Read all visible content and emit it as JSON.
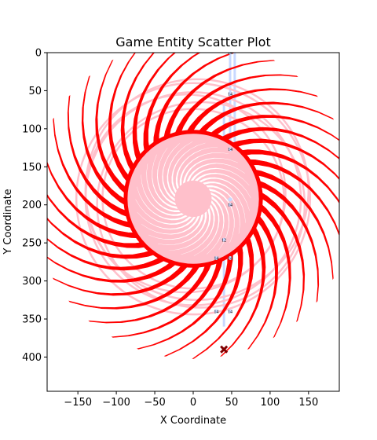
{
  "chart_data": {
    "type": "scatter",
    "title": "Game Entity Scatter Plot",
    "xlabel": "X Coordinate",
    "ylabel": "Y Coordinate",
    "xlim": [
      -190,
      190
    ],
    "ylim": [
      445,
      0
    ],
    "y_inverted": true,
    "grid": false,
    "xticks": [
      -150,
      -100,
      -50,
      0,
      50,
      100,
      150
    ],
    "yticks": [
      0,
      50,
      100,
      150,
      200,
      250,
      300,
      350,
      400
    ],
    "colors": {
      "main": "#ff0000",
      "pink": "#ffc0cb",
      "light_blue": "#c8d8ff",
      "marker": "#800000",
      "axes": "#000000"
    },
    "spiral": {
      "center": [
        0,
        192
      ],
      "blades": 36,
      "inner_radius": 50,
      "outer_radius": 210,
      "sweep_degrees": 70
    },
    "inner_disc_radius": 88,
    "inner_swirl": {
      "blades": 28,
      "inner_radius": 5,
      "outer_radius": 75,
      "sweep_degrees": 110
    },
    "rings": [
      {
        "center": [
          0,
          192
        ],
        "radius": 118
      },
      {
        "center": [
          0,
          192
        ],
        "radius": 140
      },
      {
        "center": [
          0,
          192
        ],
        "radius": 152
      },
      {
        "center": [
          -10,
          185
        ],
        "radius": 130
      },
      {
        "center": [
          10,
          200
        ],
        "radius": 135
      },
      {
        "center": [
          5,
          180
        ],
        "radius": 145
      }
    ],
    "vertical_paths": [
      {
        "x": 48,
        "y_start": 0,
        "y_end": 260
      },
      {
        "x": 54,
        "y_start": 0,
        "y_end": 240
      },
      {
        "x": 40,
        "y_start": 60,
        "y_end": 360
      }
    ],
    "points": [
      {
        "x": 48,
        "y": 54,
        "label": "14"
      },
      {
        "x": 48,
        "y": 127,
        "label": "14"
      },
      {
        "x": 48,
        "y": 200,
        "label": "14"
      },
      {
        "x": 48,
        "y": 193,
        "label": ""
      },
      {
        "x": 40,
        "y": 246,
        "label": "12"
      },
      {
        "x": 30,
        "y": 270,
        "label": "14"
      },
      {
        "x": 48,
        "y": 270,
        "label": "14"
      },
      {
        "x": 30,
        "y": 340,
        "label": "14"
      },
      {
        "x": 48,
        "y": 340,
        "label": "14"
      },
      {
        "x": 48,
        "y": 0,
        "label": "14"
      }
    ],
    "marker": {
      "x": 40,
      "y": 390,
      "symbol": "X"
    }
  }
}
